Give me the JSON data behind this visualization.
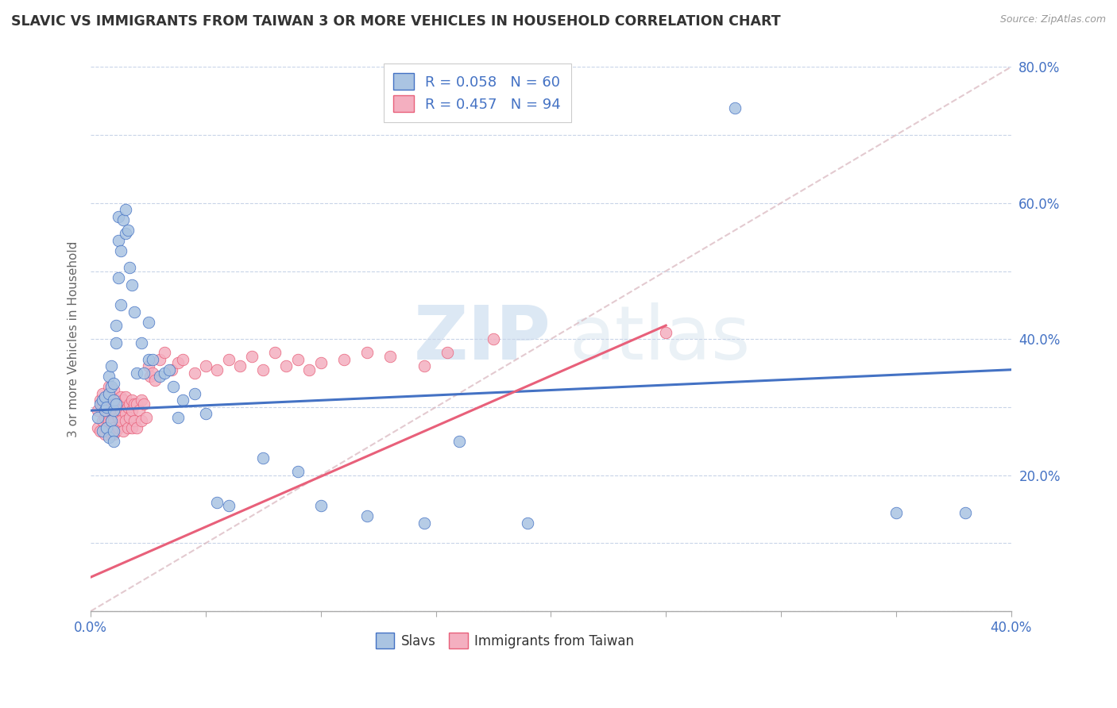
{
  "title": "SLAVIC VS IMMIGRANTS FROM TAIWAN 3 OR MORE VEHICLES IN HOUSEHOLD CORRELATION CHART",
  "source_text": "Source: ZipAtlas.com",
  "ylabel": "3 or more Vehicles in Household",
  "xlim": [
    0.0,
    0.4
  ],
  "ylim": [
    0.0,
    0.8
  ],
  "xticks": [
    0.0,
    0.05,
    0.1,
    0.15,
    0.2,
    0.25,
    0.3,
    0.35,
    0.4
  ],
  "yticks": [
    0.0,
    0.1,
    0.2,
    0.3,
    0.4,
    0.5,
    0.6,
    0.7,
    0.8
  ],
  "xticklabels": [
    "0.0%",
    "",
    "",
    "",
    "",
    "",
    "",
    "",
    "40.0%"
  ],
  "yticklabels": [
    "",
    "",
    "20.0%",
    "",
    "40.0%",
    "",
    "60.0%",
    "",
    "80.0%"
  ],
  "slavs_R": 0.058,
  "slavs_N": 60,
  "taiwan_R": 0.457,
  "taiwan_N": 94,
  "slavs_color": "#aac4e2",
  "taiwan_color": "#f4afc0",
  "slavs_line_color": "#4472c4",
  "taiwan_line_color": "#e8607a",
  "legend_label_slavs": "Slavs",
  "legend_label_taiwan": "Immigrants from Taiwan",
  "slavs_trend_x0": 0.0,
  "slavs_trend_y0": 0.295,
  "slavs_trend_x1": 0.4,
  "slavs_trend_y1": 0.355,
  "taiwan_trend_x0": 0.0,
  "taiwan_trend_y0": 0.05,
  "taiwan_trend_x1": 0.25,
  "taiwan_trend_y1": 0.42,
  "diag_color": "#d0b0b8",
  "slavs_x": [
    0.003,
    0.004,
    0.005,
    0.005,
    0.006,
    0.006,
    0.007,
    0.007,
    0.008,
    0.008,
    0.008,
    0.009,
    0.009,
    0.009,
    0.01,
    0.01,
    0.01,
    0.01,
    0.01,
    0.011,
    0.011,
    0.011,
    0.012,
    0.012,
    0.012,
    0.013,
    0.013,
    0.014,
    0.015,
    0.015,
    0.016,
    0.017,
    0.018,
    0.019,
    0.02,
    0.022,
    0.023,
    0.025,
    0.025,
    0.027,
    0.03,
    0.032,
    0.034,
    0.036,
    0.038,
    0.04,
    0.045,
    0.05,
    0.055,
    0.06,
    0.075,
    0.09,
    0.1,
    0.12,
    0.145,
    0.16,
    0.19,
    0.28,
    0.35,
    0.38
  ],
  "slavs_y": [
    0.285,
    0.305,
    0.265,
    0.31,
    0.295,
    0.315,
    0.27,
    0.3,
    0.32,
    0.255,
    0.345,
    0.28,
    0.33,
    0.36,
    0.295,
    0.31,
    0.265,
    0.25,
    0.335,
    0.305,
    0.395,
    0.42,
    0.58,
    0.545,
    0.49,
    0.45,
    0.53,
    0.575,
    0.59,
    0.555,
    0.56,
    0.505,
    0.48,
    0.44,
    0.35,
    0.395,
    0.35,
    0.425,
    0.37,
    0.37,
    0.345,
    0.35,
    0.355,
    0.33,
    0.285,
    0.31,
    0.32,
    0.29,
    0.16,
    0.155,
    0.225,
    0.205,
    0.155,
    0.14,
    0.13,
    0.25,
    0.13,
    0.74,
    0.145,
    0.145
  ],
  "taiwan_x": [
    0.003,
    0.003,
    0.004,
    0.004,
    0.005,
    0.005,
    0.005,
    0.006,
    0.006,
    0.006,
    0.006,
    0.007,
    0.007,
    0.007,
    0.007,
    0.008,
    0.008,
    0.008,
    0.008,
    0.008,
    0.009,
    0.009,
    0.009,
    0.009,
    0.01,
    0.01,
    0.01,
    0.01,
    0.01,
    0.01,
    0.01,
    0.01,
    0.01,
    0.01,
    0.01,
    0.011,
    0.011,
    0.011,
    0.011,
    0.012,
    0.012,
    0.012,
    0.013,
    0.013,
    0.013,
    0.014,
    0.014,
    0.015,
    0.015,
    0.015,
    0.016,
    0.016,
    0.017,
    0.017,
    0.018,
    0.018,
    0.018,
    0.019,
    0.019,
    0.02,
    0.02,
    0.021,
    0.022,
    0.022,
    0.023,
    0.024,
    0.025,
    0.026,
    0.027,
    0.028,
    0.03,
    0.032,
    0.035,
    0.038,
    0.04,
    0.045,
    0.05,
    0.055,
    0.06,
    0.065,
    0.07,
    0.075,
    0.08,
    0.085,
    0.09,
    0.095,
    0.1,
    0.11,
    0.12,
    0.13,
    0.145,
    0.155,
    0.175,
    0.25
  ],
  "taiwan_y": [
    0.295,
    0.27,
    0.31,
    0.265,
    0.305,
    0.28,
    0.32,
    0.295,
    0.26,
    0.31,
    0.285,
    0.305,
    0.27,
    0.315,
    0.29,
    0.3,
    0.28,
    0.265,
    0.31,
    0.33,
    0.295,
    0.28,
    0.315,
    0.26,
    0.31,
    0.285,
    0.3,
    0.275,
    0.26,
    0.295,
    0.28,
    0.3,
    0.27,
    0.31,
    0.325,
    0.305,
    0.265,
    0.29,
    0.31,
    0.285,
    0.305,
    0.27,
    0.295,
    0.315,
    0.28,
    0.31,
    0.265,
    0.29,
    0.315,
    0.28,
    0.3,
    0.27,
    0.305,
    0.285,
    0.31,
    0.27,
    0.295,
    0.305,
    0.28,
    0.305,
    0.27,
    0.295,
    0.31,
    0.28,
    0.305,
    0.285,
    0.36,
    0.345,
    0.35,
    0.34,
    0.37,
    0.38,
    0.355,
    0.365,
    0.37,
    0.35,
    0.36,
    0.355,
    0.37,
    0.36,
    0.375,
    0.355,
    0.38,
    0.36,
    0.37,
    0.355,
    0.365,
    0.37,
    0.38,
    0.375,
    0.36,
    0.38,
    0.4,
    0.41
  ]
}
